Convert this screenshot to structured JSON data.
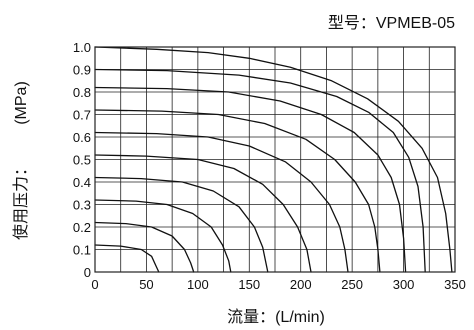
{
  "chart_data": {
    "type": "line",
    "title": "型号：VPMEB-05",
    "xlabel": "流量：(L/min)",
    "ylabel_main": "使用压力：",
    "ylabel_unit": "(MPa)",
    "xlim": [
      0,
      350
    ],
    "ylim": [
      0,
      1.0
    ],
    "xticks": [
      0,
      50,
      100,
      150,
      200,
      250,
      300,
      350
    ],
    "yticks": [
      0,
      0.1,
      0.2,
      0.3,
      0.4,
      0.5,
      0.6,
      0.7,
      0.8,
      0.9,
      1.0
    ],
    "xtick_labels": [
      "0",
      "50",
      "100",
      "150",
      "200",
      "250",
      "300",
      "350"
    ],
    "ytick_labels": [
      "0",
      "0.1",
      "0.2",
      "0.3",
      "0.4",
      "0.5",
      "0.6",
      "0.7",
      "0.8",
      "0.9",
      "1.0"
    ],
    "x_grid_step": 25,
    "grid": true,
    "line_color": "#111111",
    "grid_color": "#222222",
    "series": [
      {
        "values": [
          [
            0,
            0.12
          ],
          [
            25,
            0.115
          ],
          [
            45,
            0.1
          ],
          [
            55,
            0.07
          ],
          [
            60,
            0.02
          ],
          [
            62,
            0
          ]
        ]
      },
      {
        "values": [
          [
            0,
            0.22
          ],
          [
            30,
            0.215
          ],
          [
            55,
            0.2
          ],
          [
            75,
            0.16
          ],
          [
            87,
            0.1
          ],
          [
            93,
            0.04
          ],
          [
            96,
            0
          ]
        ]
      },
      {
        "values": [
          [
            0,
            0.32
          ],
          [
            40,
            0.315
          ],
          [
            70,
            0.3
          ],
          [
            95,
            0.26
          ],
          [
            113,
            0.2
          ],
          [
            124,
            0.12
          ],
          [
            130,
            0.05
          ],
          [
            132,
            0
          ]
        ]
      },
      {
        "values": [
          [
            0,
            0.42
          ],
          [
            45,
            0.415
          ],
          [
            85,
            0.4
          ],
          [
            115,
            0.36
          ],
          [
            140,
            0.29
          ],
          [
            155,
            0.2
          ],
          [
            163,
            0.11
          ],
          [
            168,
            0
          ]
        ]
      },
      {
        "values": [
          [
            0,
            0.52
          ],
          [
            50,
            0.515
          ],
          [
            100,
            0.5
          ],
          [
            135,
            0.46
          ],
          [
            163,
            0.39
          ],
          [
            183,
            0.3
          ],
          [
            197,
            0.2
          ],
          [
            206,
            0.1
          ],
          [
            210,
            0
          ]
        ]
      },
      {
        "values": [
          [
            0,
            0.62
          ],
          [
            60,
            0.615
          ],
          [
            110,
            0.6
          ],
          [
            150,
            0.56
          ],
          [
            185,
            0.49
          ],
          [
            210,
            0.4
          ],
          [
            228,
            0.3
          ],
          [
            238,
            0.2
          ],
          [
            243,
            0.1
          ],
          [
            246,
            0
          ]
        ]
      },
      {
        "values": [
          [
            0,
            0.72
          ],
          [
            65,
            0.715
          ],
          [
            120,
            0.7
          ],
          [
            165,
            0.66
          ],
          [
            205,
            0.59
          ],
          [
            233,
            0.5
          ],
          [
            253,
            0.4
          ],
          [
            266,
            0.3
          ],
          [
            272,
            0.2
          ],
          [
            275,
            0.1
          ],
          [
            277,
            0
          ]
        ]
      },
      {
        "values": [
          [
            0,
            0.82
          ],
          [
            70,
            0.815
          ],
          [
            130,
            0.8
          ],
          [
            180,
            0.76
          ],
          [
            220,
            0.7
          ],
          [
            252,
            0.62
          ],
          [
            275,
            0.52
          ],
          [
            288,
            0.42
          ],
          [
            296,
            0.3
          ],
          [
            300,
            0.15
          ],
          [
            302,
            0
          ]
        ]
      },
      {
        "values": [
          [
            0,
            0.9
          ],
          [
            70,
            0.895
          ],
          [
            140,
            0.875
          ],
          [
            190,
            0.84
          ],
          [
            235,
            0.78
          ],
          [
            266,
            0.71
          ],
          [
            290,
            0.62
          ],
          [
            305,
            0.51
          ],
          [
            314,
            0.38
          ],
          [
            319,
            0.2
          ],
          [
            321,
            0
          ]
        ]
      },
      {
        "values": [
          [
            0,
            1.0
          ],
          [
            60,
            0.99
          ],
          [
            110,
            0.975
          ],
          [
            150,
            0.95
          ],
          [
            190,
            0.91
          ],
          [
            230,
            0.85
          ],
          [
            265,
            0.77
          ],
          [
            295,
            0.67
          ],
          [
            318,
            0.55
          ],
          [
            333,
            0.42
          ],
          [
            341,
            0.26
          ],
          [
            345,
            0.1
          ],
          [
            347,
            0
          ]
        ]
      }
    ]
  }
}
